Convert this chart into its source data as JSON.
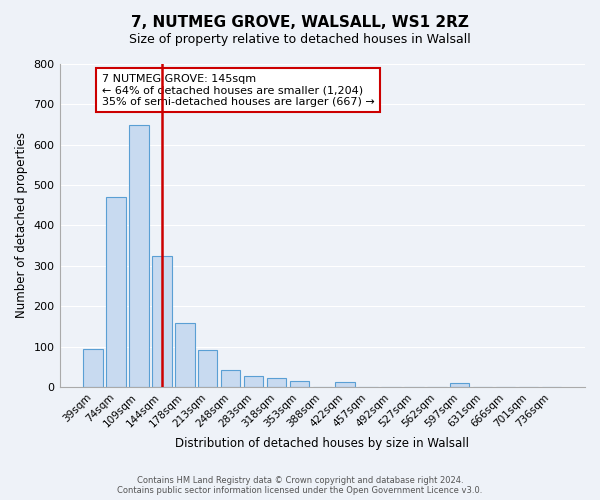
{
  "title": "7, NUTMEG GROVE, WALSALL, WS1 2RZ",
  "subtitle": "Size of property relative to detached houses in Walsall",
  "bar_labels": [
    "39sqm",
    "74sqm",
    "109sqm",
    "144sqm",
    "178sqm",
    "213sqm",
    "248sqm",
    "283sqm",
    "318sqm",
    "353sqm",
    "388sqm",
    "422sqm",
    "457sqm",
    "492sqm",
    "527sqm",
    "562sqm",
    "597sqm",
    "631sqm",
    "666sqm",
    "701sqm",
    "736sqm"
  ],
  "bar_values": [
    95,
    470,
    648,
    325,
    158,
    92,
    43,
    28,
    22,
    14,
    0,
    13,
    0,
    0,
    0,
    0,
    9,
    0,
    0,
    0,
    0
  ],
  "bar_color": "#c8daf0",
  "bar_edge_color": "#5a9fd4",
  "ylabel": "Number of detached properties",
  "xlabel": "Distribution of detached houses by size in Walsall",
  "ylim": [
    0,
    800
  ],
  "yticks": [
    0,
    100,
    200,
    300,
    400,
    500,
    600,
    700,
    800
  ],
  "property_line_x": 3.0,
  "property_line_color": "#cc0000",
  "annotation_title": "7 NUTMEG GROVE: 145sqm",
  "annotation_line1": "← 64% of detached houses are smaller (1,204)",
  "annotation_line2": "35% of semi-detached houses are larger (667) →",
  "annotation_box_color": "#cc0000",
  "footer_line1": "Contains HM Land Registry data © Crown copyright and database right 2024.",
  "footer_line2": "Contains public sector information licensed under the Open Government Licence v3.0.",
  "bg_color": "#eef2f8",
  "grid_color": "#ffffff"
}
